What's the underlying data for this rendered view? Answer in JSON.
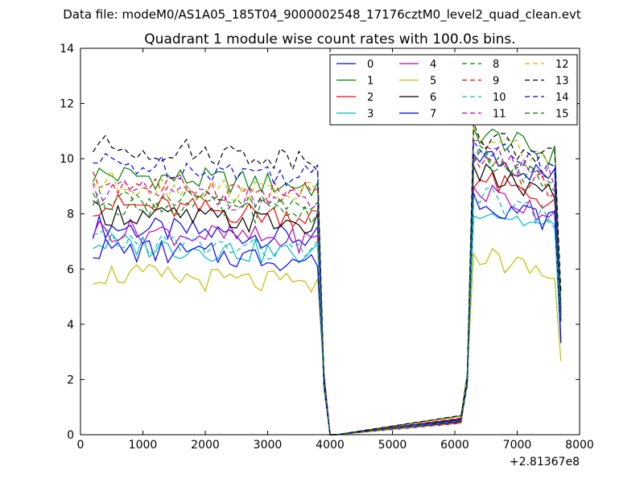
{
  "figure": {
    "suptitle": "Data file: modeM0/AS1A05_185T04_9000002548_17176cztM0_level2_quad_clean.evt"
  },
  "chart_data": {
    "type": "line",
    "title": "Quadrant 1 module wise count rates with 100.0s bins.",
    "xlabel": "",
    "ylabel": "",
    "x_offset_label": "+2.81367e8",
    "xlim": [
      0,
      8000
    ],
    "ylim": [
      0,
      14
    ],
    "xticks": [
      0,
      1000,
      2000,
      3000,
      4000,
      5000,
      6000,
      7000,
      8000
    ],
    "yticks": [
      0,
      2,
      4,
      6,
      8,
      10,
      12,
      14
    ],
    "grid": false,
    "legend_position": "top-right",
    "legend_columns": 4,
    "x": [
      200,
      300,
      400,
      500,
      600,
      700,
      800,
      900,
      1000,
      1100,
      1200,
      1300,
      1400,
      1500,
      1600,
      1700,
      1800,
      1900,
      2000,
      2100,
      2200,
      2300,
      2400,
      2500,
      2600,
      2700,
      2800,
      2900,
      3000,
      3100,
      3200,
      3300,
      3400,
      3500,
      3600,
      3700,
      3800,
      3900,
      4000,
      4100,
      6100,
      6200,
      6300,
      6400,
      6500,
      6600,
      6700,
      6800,
      6900,
      7000,
      7100,
      7200,
      7300,
      7400,
      7500,
      7600,
      7700
    ],
    "series": [
      {
        "name": "0",
        "color": "#0000ff",
        "style": "solid",
        "base": 7.1,
        "post": 9.9
      },
      {
        "name": "1",
        "color": "#008000",
        "style": "solid",
        "base": 9.0,
        "post": 10.7
      },
      {
        "name": "2",
        "color": "#ff0000",
        "style": "solid",
        "base": 7.9,
        "post": 9.0
      },
      {
        "name": "3",
        "color": "#00bfbf",
        "style": "solid",
        "base": 6.5,
        "post": 8.0
      },
      {
        "name": "4",
        "color": "#bf00bf",
        "style": "solid",
        "base": 7.0,
        "post": 8.6
      },
      {
        "name": "5",
        "color": "#bfbf00",
        "style": "solid",
        "base": 5.4,
        "post": 6.3
      },
      {
        "name": "6",
        "color": "#000000",
        "style": "solid",
        "base": 7.6,
        "post": 9.2
      },
      {
        "name": "7",
        "color": "#0000ff",
        "style": "solid",
        "base": 6.3,
        "post": 8.3
      },
      {
        "name": "8",
        "color": "#008000",
        "style": "dashed",
        "base": 8.0,
        "post": 9.7
      },
      {
        "name": "9",
        "color": "#ff0000",
        "style": "dashed",
        "base": 8.7,
        "post": 9.5
      },
      {
        "name": "10",
        "color": "#00bfbf",
        "style": "dashed",
        "base": 6.6,
        "post": 8.4
      },
      {
        "name": "11",
        "color": "#bf00bf",
        "style": "dashed",
        "base": 8.4,
        "post": 10.0
      },
      {
        "name": "12",
        "color": "#bfbf00",
        "style": "dashed",
        "base": 8.7,
        "post": 10.5
      },
      {
        "name": "13",
        "color": "#000000",
        "style": "dashed",
        "base": 10.0,
        "post": 10.6
      },
      {
        "name": "14",
        "color": "#0000ff",
        "style": "dashed",
        "base": 9.4,
        "post": 10.3
      },
      {
        "name": "15",
        "color": "#008000",
        "style": "dashed",
        "base": 8.2,
        "post": 9.8
      }
    ]
  }
}
